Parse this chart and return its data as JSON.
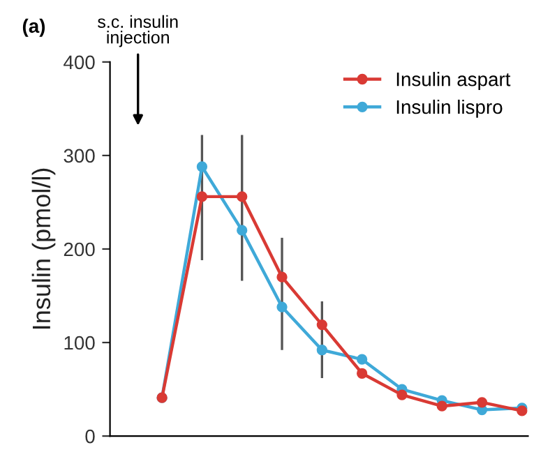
{
  "chart_data": {
    "type": "line",
    "ylabel": "Insulin (pmol/l)",
    "annotations": [
      "(a)",
      "s.c. insulin\ninjection"
    ],
    "categories": [
      null,
      null,
      null,
      null,
      null,
      null,
      null,
      null,
      null,
      null
    ],
    "ylim": [
      0,
      400
    ],
    "yticks": [
      0,
      100,
      200,
      300,
      400
    ],
    "legend": "top right",
    "marker": "circle",
    "line_style": "solid",
    "series": [
      {
        "name": "Insulin aspart",
        "color": "#d93a34",
        "values": [
          41,
          256,
          256,
          170,
          119,
          67,
          44,
          32,
          36,
          27
        ],
        "errors": [
          null,
          [
            188,
            322
          ],
          [
            166,
            322
          ],
          [
            92,
            212
          ],
          [
            62,
            144
          ],
          null,
          null,
          null,
          null,
          null
        ]
      },
      {
        "name": "Insulin lispro",
        "color": "#3fa9d8",
        "values": [
          41,
          288,
          220,
          138,
          92,
          82,
          50,
          38,
          28,
          30
        ]
      }
    ]
  }
}
